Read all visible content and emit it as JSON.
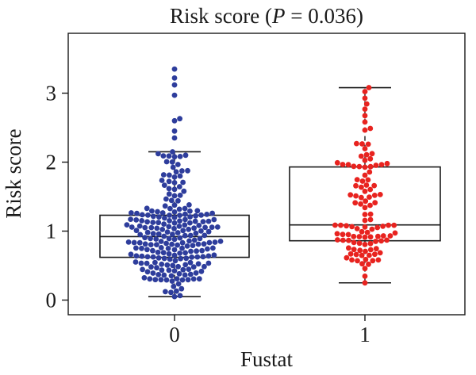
{
  "chart_data": {
    "type": "box",
    "title_main": "Risk score (",
    "title_p": "P",
    "title_rest": " = 0.036)",
    "xlabel": "Fustat",
    "ylabel": "Risk score",
    "ylim": [
      -0.1,
      3.55
    ],
    "yticks": [
      "0",
      "1",
      "2",
      "3"
    ],
    "categories": [
      "0",
      "1"
    ],
    "series": [
      {
        "category": "0",
        "color": "#2e3d9c",
        "whisker_low": 0.05,
        "q1": 0.62,
        "median": 0.92,
        "q3": 1.23,
        "whisker_high": 2.15,
        "outliers": [
          2.35,
          2.45,
          2.6,
          2.63,
          2.97,
          3.12,
          3.22,
          3.35
        ],
        "n": 230
      },
      {
        "category": "1",
        "color": "#e8231f",
        "whisker_low": 0.25,
        "q1": 0.86,
        "median": 1.09,
        "q3": 1.93,
        "whisker_high": 3.08,
        "outliers": [],
        "n": 110
      }
    ]
  }
}
